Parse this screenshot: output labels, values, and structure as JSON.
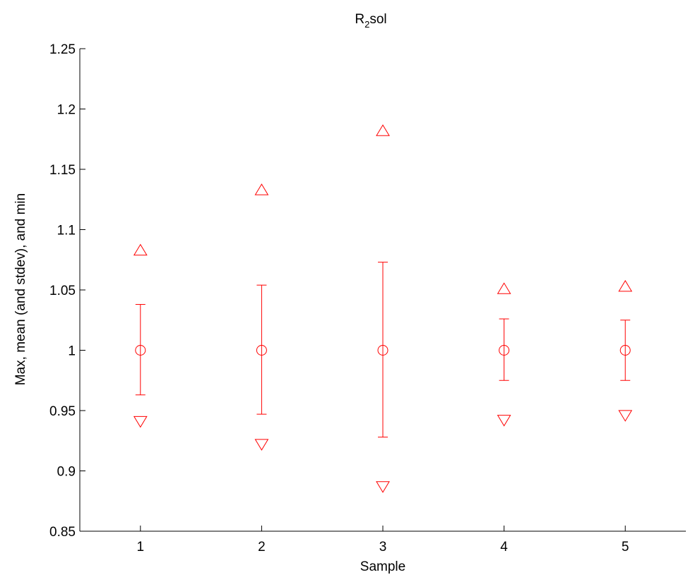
{
  "chart_data": {
    "type": "scatter",
    "title": "R",
    "title_subscript": "2",
    "title_suffix": "sol",
    "xlabel": "Sample",
    "ylabel": "Max, mean (and stdev), and min",
    "xlim": [
      0.5,
      5.5
    ],
    "ylim": [
      0.85,
      1.25
    ],
    "x_ticks": [
      1,
      2,
      3,
      4,
      5
    ],
    "y_ticks": [
      0.85,
      0.9,
      0.95,
      1,
      1.05,
      1.1,
      1.15,
      1.2,
      1.25
    ],
    "y_tick_labels": [
      "0.85",
      "0.9",
      "0.95",
      "1",
      "1.05",
      "1.1",
      "1.15",
      "1.2",
      "1.25"
    ],
    "grid": false,
    "color": "#ff0000",
    "samples": [
      1,
      2,
      3,
      4,
      5
    ],
    "series": [
      {
        "marker": "triangle-up",
        "values": [
          1.083,
          1.133,
          1.182,
          1.051,
          1.053
        ]
      },
      {
        "marker": "circle",
        "values": [
          1.0,
          1.0,
          1.0,
          1.0,
          1.0
        ]
      },
      {
        "marker": "triangle-down",
        "values": [
          0.941,
          0.922,
          0.887,
          0.942,
          0.946
        ]
      }
    ],
    "error_bars": {
      "upper": [
        1.038,
        1.054,
        1.073,
        1.026,
        1.025
      ],
      "lower": [
        0.963,
        0.947,
        0.928,
        0.975,
        0.975
      ]
    }
  }
}
